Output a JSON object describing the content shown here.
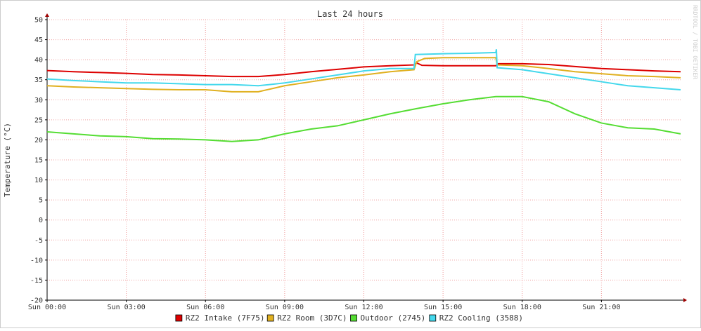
{
  "chart_data": {
    "type": "line",
    "title": "Last 24 hours",
    "y_label": "Temperature (°C)",
    "watermark": "RRDTOOL / TOBI OETIKER",
    "xlim": [
      0,
      24
    ],
    "xticks": [
      {
        "value": 0,
        "label": "Sun 00:00"
      },
      {
        "value": 3,
        "label": "Sun 03:00"
      },
      {
        "value": 6,
        "label": "Sun 06:00"
      },
      {
        "value": 9,
        "label": "Sun 09:00"
      },
      {
        "value": 12,
        "label": "Sun 12:00"
      },
      {
        "value": 15,
        "label": "Sun 15:00"
      },
      {
        "value": 18,
        "label": "Sun 18:00"
      },
      {
        "value": 21,
        "label": "Sun 21:00"
      }
    ],
    "ylim": [
      -20,
      50
    ],
    "yticks": [
      -20,
      -15,
      -10,
      -5,
      0,
      5,
      10,
      15,
      20,
      25,
      30,
      35,
      40,
      45,
      50
    ],
    "grid": true,
    "series": [
      {
        "name": "RZ2 Intake (7F75)",
        "color": "#dd0000",
        "x": [
          0,
          1,
          2,
          3,
          4,
          5,
          6,
          7,
          8,
          9,
          10,
          11,
          12,
          13,
          13.9,
          14,
          14.2,
          15,
          16,
          17,
          17.1,
          18,
          19,
          20,
          21,
          22,
          23,
          24
        ],
        "values": [
          37.3,
          37.0,
          36.8,
          36.6,
          36.3,
          36.2,
          36.0,
          35.8,
          35.8,
          36.3,
          37.0,
          37.6,
          38.2,
          38.5,
          38.7,
          39.2,
          38.6,
          38.5,
          38.5,
          38.5,
          39.0,
          39.0,
          38.8,
          38.3,
          37.8,
          37.5,
          37.2,
          37.0
        ]
      },
      {
        "name": "RZ2 Room (3D7C)",
        "color": "#e0b020",
        "x": [
          0,
          1,
          2,
          3,
          4,
          5,
          6,
          7,
          8,
          9,
          10,
          11,
          12,
          13,
          13.9,
          14,
          14.3,
          15,
          16,
          17,
          17.05,
          18,
          19,
          20,
          21,
          22,
          23,
          24
        ],
        "values": [
          33.5,
          33.2,
          33.0,
          32.8,
          32.6,
          32.5,
          32.5,
          32.0,
          32.0,
          33.5,
          34.5,
          35.5,
          36.2,
          37.0,
          37.5,
          39.5,
          40.3,
          40.5,
          40.5,
          40.5,
          38.7,
          38.5,
          37.8,
          37.0,
          36.5,
          36.0,
          35.8,
          35.5
        ]
      },
      {
        "name": "Outdoor (2745)",
        "color": "#55dd33",
        "x": [
          0,
          1,
          2,
          3,
          4,
          5,
          6,
          7,
          8,
          9,
          10,
          11,
          12,
          13,
          14,
          15,
          16,
          17,
          18,
          19,
          20,
          21,
          22,
          23,
          24
        ],
        "values": [
          22.0,
          21.5,
          21.0,
          20.8,
          20.3,
          20.2,
          20.0,
          19.6,
          20.0,
          21.5,
          22.7,
          23.5,
          25.0,
          26.5,
          27.8,
          29.0,
          30.0,
          30.8,
          30.8,
          29.5,
          26.5,
          24.2,
          23.0,
          22.7,
          21.5
        ]
      },
      {
        "name": "RZ2 Cooling (3588)",
        "color": "#44d8ec",
        "x": [
          0,
          1,
          2,
          3,
          4,
          5,
          6,
          7,
          8,
          9,
          10,
          11,
          12,
          13,
          13.9,
          13.95,
          15,
          16,
          17,
          17.02,
          17.05,
          18,
          19,
          20,
          21,
          22,
          23,
          24
        ],
        "values": [
          35.2,
          34.8,
          34.5,
          34.2,
          34.2,
          34.0,
          33.8,
          33.8,
          33.5,
          34.2,
          35.2,
          36.2,
          37.2,
          37.8,
          37.8,
          41.3,
          41.5,
          41.6,
          41.8,
          42.6,
          38.0,
          37.5,
          36.5,
          35.5,
          34.5,
          33.5,
          33.0,
          32.5
        ]
      }
    ]
  }
}
